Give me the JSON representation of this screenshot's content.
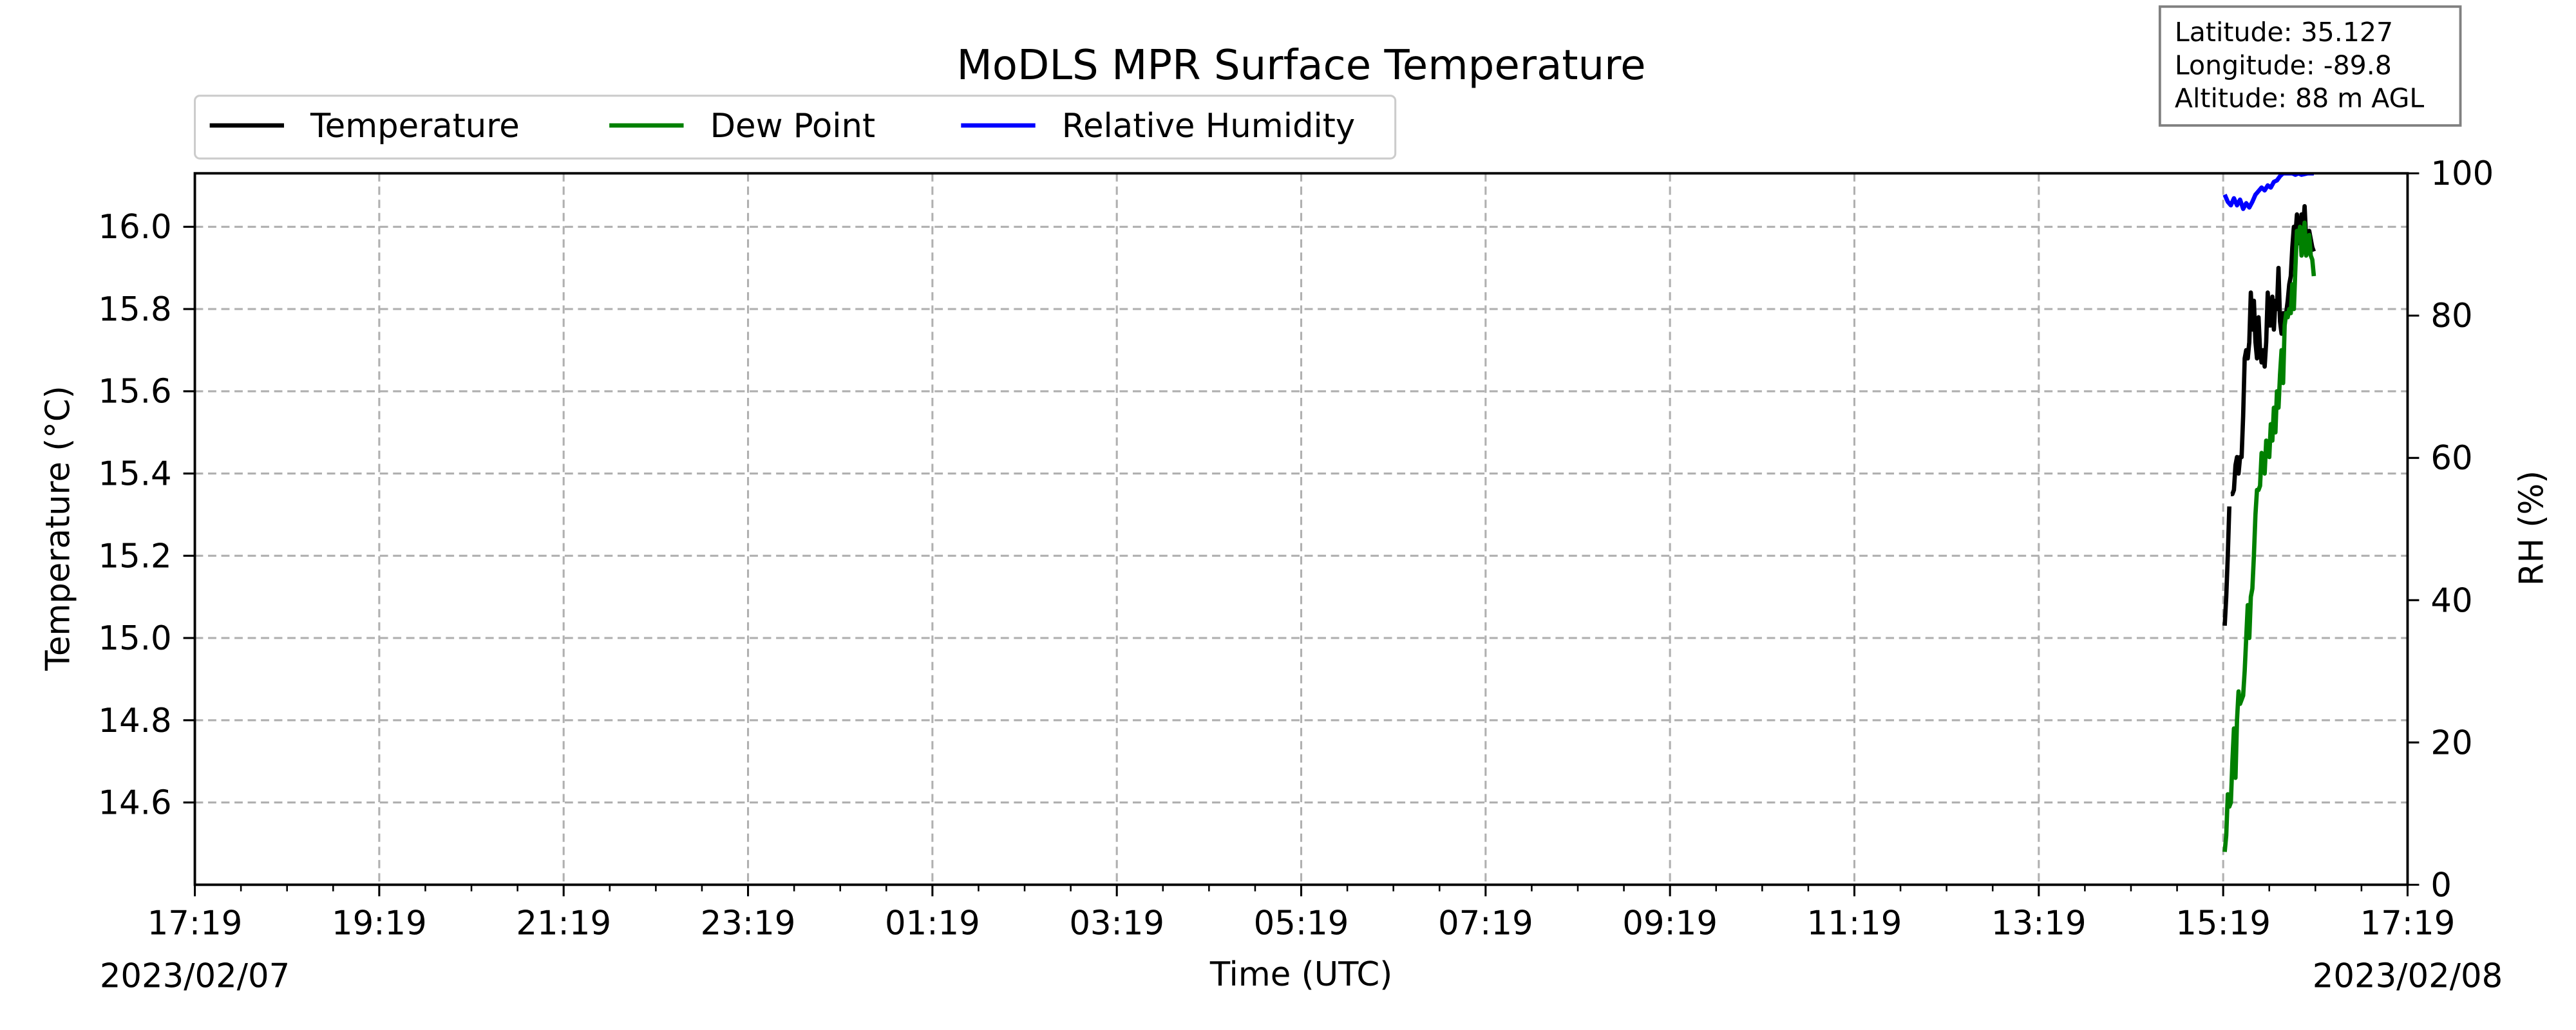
{
  "chart_data": {
    "type": "line",
    "title": "MoDLS MPR Surface Temperature",
    "xlabel": "Time (UTC)",
    "ylabel": "Temperature ($^\\circ$C)",
    "ylabel_display": "Temperature (°C)",
    "y2label": "RH (%)",
    "ylim": [
      14.4,
      16.13
    ],
    "y2lim": [
      0,
      100
    ],
    "xlim": [
      "2023-02-07 17:19",
      "2023-02-08 17:19"
    ],
    "x_tick_labels": [
      "17:19",
      "19:19",
      "21:19",
      "23:19",
      "01:19",
      "03:19",
      "05:19",
      "07:19",
      "09:19",
      "11:19",
      "13:19",
      "15:19",
      "17:19"
    ],
    "x_date_labels": {
      "left": "2023/02/07",
      "right": "2023/02/08"
    },
    "y_tick_labels": [
      "14.6",
      "14.8",
      "15.0",
      "15.2",
      "15.4",
      "15.6",
      "15.8",
      "16.0"
    ],
    "y_ticks": [
      14.6,
      14.8,
      15.0,
      15.2,
      15.4,
      15.6,
      15.8,
      16.0
    ],
    "y2_ticks": [
      0,
      20,
      40,
      60,
      80,
      100
    ],
    "y2_tick_labels": [
      "0",
      "20",
      "40",
      "60",
      "80",
      "100"
    ],
    "grid": true,
    "legend_position": "top-left",
    "colors": {
      "temperature": "#000000",
      "dew_point": "#008000",
      "rh": "#0000ff",
      "grid": "#b0b0b0"
    },
    "info_box": {
      "latitude": "Latitude: 35.127",
      "longitude": "Longitude: -89.8",
      "altitude": "Altitude: 88 m AGL"
    },
    "series": [
      {
        "name": "Temperature",
        "axis": "left",
        "color": "#000000",
        "segments": [
          [
            [
              "2023-02-08 15:20",
              15.03
            ],
            [
              "2023-02-08 15:21",
              15.1
            ],
            [
              "2023-02-08 15:22",
              15.2
            ],
            [
              "2023-02-08 15:23",
              15.32
            ]
          ],
          [
            [
              "2023-02-08 15:24",
              15.35
            ],
            [
              "2023-02-08 15:25",
              15.35
            ],
            [
              "2023-02-08 15:26",
              15.36
            ],
            [
              "2023-02-08 15:27",
              15.42
            ],
            [
              "2023-02-08 15:28",
              15.44
            ],
            [
              "2023-02-08 15:29",
              15.4
            ],
            [
              "2023-02-08 15:30",
              15.44
            ],
            [
              "2023-02-08 15:31",
              15.44
            ],
            [
              "2023-02-08 15:32",
              15.54
            ],
            [
              "2023-02-08 15:33",
              15.68
            ],
            [
              "2023-02-08 15:34",
              15.7
            ],
            [
              "2023-02-08 15:35",
              15.68
            ],
            [
              "2023-02-08 15:36",
              15.72
            ],
            [
              "2023-02-08 15:37",
              15.84
            ],
            [
              "2023-02-08 15:38",
              15.75
            ],
            [
              "2023-02-08 15:39",
              15.82
            ],
            [
              "2023-02-08 15:40",
              15.72
            ],
            [
              "2023-02-08 15:41",
              15.68
            ],
            [
              "2023-02-08 15:42",
              15.78
            ],
            [
              "2023-02-08 15:43",
              15.7
            ],
            [
              "2023-02-08 15:44",
              15.67
            ],
            [
              "2023-02-08 15:45",
              15.7
            ],
            [
              "2023-02-08 15:46",
              15.66
            ],
            [
              "2023-02-08 15:47",
              15.72
            ],
            [
              "2023-02-08 15:48",
              15.84
            ],
            [
              "2023-02-08 15:49",
              15.76
            ],
            [
              "2023-02-08 15:50",
              15.76
            ],
            [
              "2023-02-08 15:51",
              15.83
            ],
            [
              "2023-02-08 15:52",
              15.75
            ],
            [
              "2023-02-08 15:53",
              15.82
            ],
            [
              "2023-02-08 15:54",
              15.8
            ],
            [
              "2023-02-08 15:55",
              15.9
            ],
            [
              "2023-02-08 15:56",
              15.77
            ],
            [
              "2023-02-08 15:57",
              15.74
            ],
            [
              "2023-02-08 15:58",
              15.79
            ],
            [
              "2023-02-08 15:59",
              15.78
            ],
            [
              "2023-02-08 16:00",
              15.79
            ],
            [
              "2023-02-08 16:01",
              15.82
            ],
            [
              "2023-02-08 16:02",
              15.86
            ],
            [
              "2023-02-08 16:03",
              15.88
            ],
            [
              "2023-02-08 16:04",
              15.95
            ],
            [
              "2023-02-08 16:05",
              16.0
            ],
            [
              "2023-02-08 16:06",
              15.98
            ],
            [
              "2023-02-08 16:07",
              16.03
            ],
            [
              "2023-02-08 16:08",
              15.96
            ],
            [
              "2023-02-08 16:09",
              15.99
            ],
            [
              "2023-02-08 16:10",
              16.03
            ],
            [
              "2023-02-08 16:11",
              16.0
            ],
            [
              "2023-02-08 16:12",
              16.05
            ],
            [
              "2023-02-08 16:13",
              15.97
            ],
            [
              "2023-02-08 16:14",
              15.96
            ],
            [
              "2023-02-08 16:15",
              15.99
            ],
            [
              "2023-02-08 16:16",
              15.97
            ],
            [
              "2023-02-08 16:17",
              15.95
            ],
            [
              "2023-02-08 16:18",
              15.94
            ]
          ]
        ]
      },
      {
        "name": "Dew Point",
        "axis": "left",
        "color": "#008000",
        "segments": [
          [
            [
              "2023-02-08 15:20",
              14.48
            ],
            [
              "2023-02-08 15:21",
              14.52
            ],
            [
              "2023-02-08 15:22",
              14.62
            ],
            [
              "2023-02-08 15:23",
              14.59
            ],
            [
              "2023-02-08 15:24",
              14.6
            ],
            [
              "2023-02-08 15:25",
              14.7
            ],
            [
              "2023-02-08 15:26",
              14.78
            ],
            [
              "2023-02-08 15:27",
              14.66
            ],
            [
              "2023-02-08 15:28",
              14.8
            ],
            [
              "2023-02-08 15:29",
              14.87
            ],
            [
              "2023-02-08 15:30",
              14.84
            ],
            [
              "2023-02-08 15:31",
              14.85
            ],
            [
              "2023-02-08 15:32",
              14.86
            ],
            [
              "2023-02-08 15:33",
              14.92
            ],
            [
              "2023-02-08 15:34",
              15.0
            ],
            [
              "2023-02-08 15:35",
              15.08
            ],
            [
              "2023-02-08 15:36",
              15.0
            ],
            [
              "2023-02-08 15:37",
              15.1
            ],
            [
              "2023-02-08 15:38",
              15.12
            ],
            [
              "2023-02-08 15:39",
              15.2
            ],
            [
              "2023-02-08 15:40",
              15.3
            ],
            [
              "2023-02-08 15:41",
              15.36
            ],
            [
              "2023-02-08 15:42",
              15.36
            ],
            [
              "2023-02-08 15:43",
              15.37
            ],
            [
              "2023-02-08 15:44",
              15.45
            ],
            [
              "2023-02-08 15:45",
              15.44
            ],
            [
              "2023-02-08 15:46",
              15.4
            ],
            [
              "2023-02-08 15:47",
              15.48
            ],
            [
              "2023-02-08 15:48",
              15.47
            ],
            [
              "2023-02-08 15:49",
              15.44
            ],
            [
              "2023-02-08 15:50",
              15.52
            ],
            [
              "2023-02-08 15:51",
              15.48
            ],
            [
              "2023-02-08 15:52",
              15.56
            ],
            [
              "2023-02-08 15:53",
              15.5
            ],
            [
              "2023-02-08 15:54",
              15.6
            ],
            [
              "2023-02-08 15:55",
              15.56
            ],
            [
              "2023-02-08 15:56",
              15.64
            ],
            [
              "2023-02-08 15:57",
              15.7
            ],
            [
              "2023-02-08 15:58",
              15.62
            ],
            [
              "2023-02-08 15:59",
              15.76
            ],
            [
              "2023-02-08 16:00",
              15.79
            ],
            [
              "2023-02-08 16:01",
              15.78
            ],
            [
              "2023-02-08 16:02",
              15.8
            ],
            [
              "2023-02-08 16:03",
              15.79
            ],
            [
              "2023-02-08 16:04",
              15.86
            ],
            [
              "2023-02-08 16:05",
              15.8
            ],
            [
              "2023-02-08 16:06",
              15.9
            ],
            [
              "2023-02-08 16:07",
              15.99
            ],
            [
              "2023-02-08 16:08",
              15.97
            ],
            [
              "2023-02-08 16:09",
              16.0
            ],
            [
              "2023-02-08 16:10",
              15.93
            ],
            [
              "2023-02-08 16:11",
              15.96
            ],
            [
              "2023-02-08 16:12",
              16.01
            ],
            [
              "2023-02-08 16:13",
              15.93
            ],
            [
              "2023-02-08 16:14",
              15.94
            ],
            [
              "2023-02-08 16:15",
              15.98
            ],
            [
              "2023-02-08 16:16",
              15.93
            ],
            [
              "2023-02-08 16:17",
              15.92
            ],
            [
              "2023-02-08 16:18",
              15.88
            ]
          ]
        ]
      },
      {
        "name": "Relative Humidity",
        "axis": "right",
        "color": "#0000ff",
        "segments": [
          [
            [
              "2023-02-08 15:20",
              97.0
            ],
            [
              "2023-02-08 15:22",
              96.0
            ],
            [
              "2023-02-08 15:24",
              95.5
            ],
            [
              "2023-02-08 15:26",
              96.5
            ],
            [
              "2023-02-08 15:28",
              95.5
            ],
            [
              "2023-02-08 15:30",
              96.3
            ],
            [
              "2023-02-08 15:32",
              95.0
            ],
            [
              "2023-02-08 15:34",
              95.8
            ],
            [
              "2023-02-08 15:36",
              95.2
            ],
            [
              "2023-02-08 15:38",
              96.0
            ],
            [
              "2023-02-08 15:40",
              97.0
            ],
            [
              "2023-02-08 15:42",
              97.5
            ],
            [
              "2023-02-08 15:44",
              98.0
            ],
            [
              "2023-02-08 15:46",
              97.6
            ],
            [
              "2023-02-08 15:48",
              98.3
            ],
            [
              "2023-02-08 15:50",
              98.0
            ],
            [
              "2023-02-08 15:52",
              98.8
            ],
            [
              "2023-02-08 15:54",
              99.0
            ],
            [
              "2023-02-08 15:56",
              99.6
            ],
            [
              "2023-02-08 15:58",
              100.0
            ],
            [
              "2023-02-08 16:00",
              100.0
            ],
            [
              "2023-02-08 16:02",
              100.0
            ],
            [
              "2023-02-08 16:04",
              100.0
            ],
            [
              "2023-02-08 16:06",
              99.8
            ],
            [
              "2023-02-08 16:08",
              100.0
            ],
            [
              "2023-02-08 16:10",
              99.8
            ],
            [
              "2023-02-08 16:12",
              99.9
            ],
            [
              "2023-02-08 16:14",
              100.0
            ],
            [
              "2023-02-08 16:16",
              100.0
            ],
            [
              "2023-02-08 16:18",
              100.0
            ]
          ]
        ]
      }
    ]
  }
}
